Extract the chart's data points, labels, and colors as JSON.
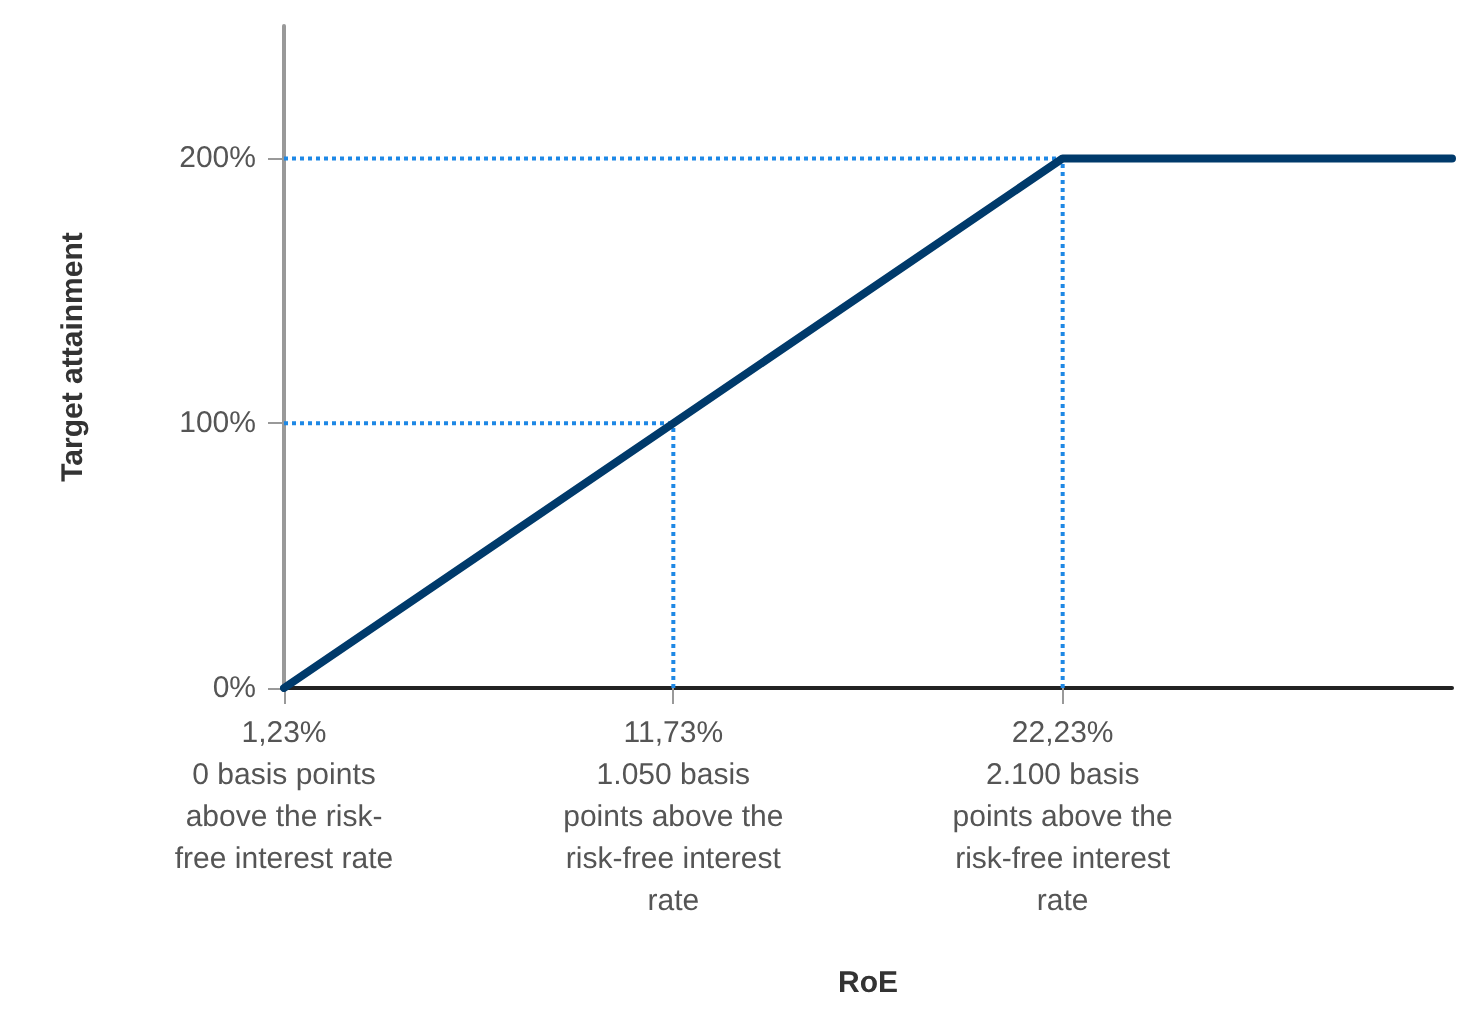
{
  "chart_data": {
    "type": "line",
    "xlabel": "RoE",
    "ylabel": "Target attainment",
    "categories": [
      "1,23%\n0 basis points\nabove the risk-\nfree interest rate",
      "11,73%\n1.050 basis\npoints above the\nrisk-free interest\nrate",
      "22,23%\n2.100 basis\npoints above the\nrisk-free interest\nrate",
      null
    ],
    "series": [
      {
        "color": "#003a6b",
        "values": [
          0,
          100,
          200,
          200
        ]
      }
    ],
    "ylim": [
      0,
      250
    ],
    "yticks": [
      {
        "value": 0,
        "label": "0%"
      },
      {
        "value": 100,
        "label": "100%"
      },
      {
        "value": 200,
        "label": "200%"
      }
    ],
    "ref_lines": [
      {
        "axis": "x",
        "value": "11,73%\n1.050 basis\npoints above the\nrisk-free interest\nrate",
        "color": "#1e88e5",
        "line_style": "dotted"
      },
      {
        "axis": "x",
        "value": "22,23%\n2.100 basis\npoints above the\nrisk-free interest\nrate",
        "color": "#1e88e5",
        "line_style": "dotted"
      },
      {
        "axis": "y",
        "value": 100,
        "color": "#1e88e5",
        "line_style": "dotted"
      },
      {
        "axis": "y",
        "value": 200,
        "color": "#1e88e5",
        "line_style": "dotted"
      }
    ],
    "grid": false,
    "marker": "none",
    "line_style": "solid"
  }
}
